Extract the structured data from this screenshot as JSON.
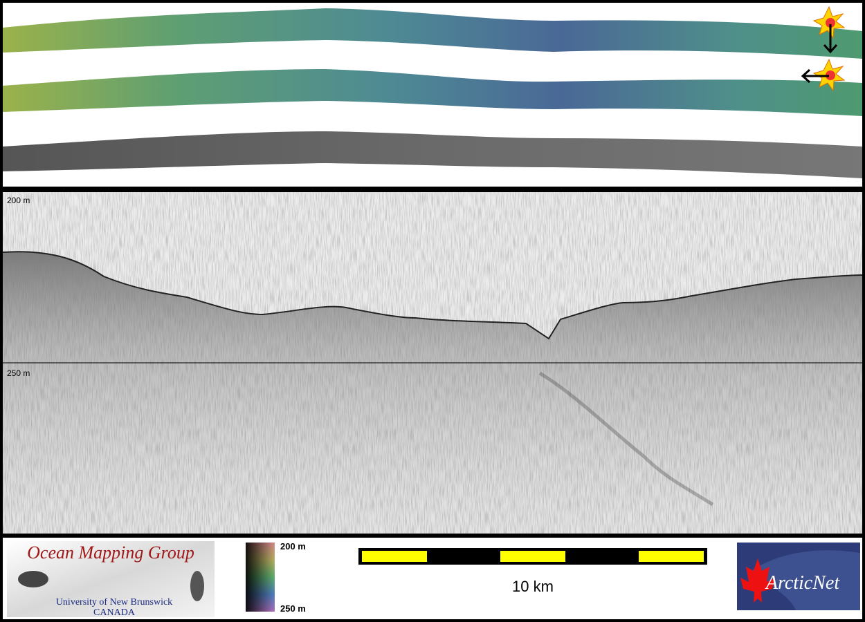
{
  "profile": {
    "depth_labels": [
      "200 m",
      "250 m"
    ]
  },
  "logo": {
    "title": "Ocean Mapping Group",
    "subtitle": "University of New Brunswick",
    "country": "CANADA"
  },
  "colorbar": {
    "top_label": "200 m",
    "bottom_label": "250 m"
  },
  "scale_bar": {
    "label": "10 km"
  },
  "partner_logo": {
    "name": "ArcticNet"
  }
}
